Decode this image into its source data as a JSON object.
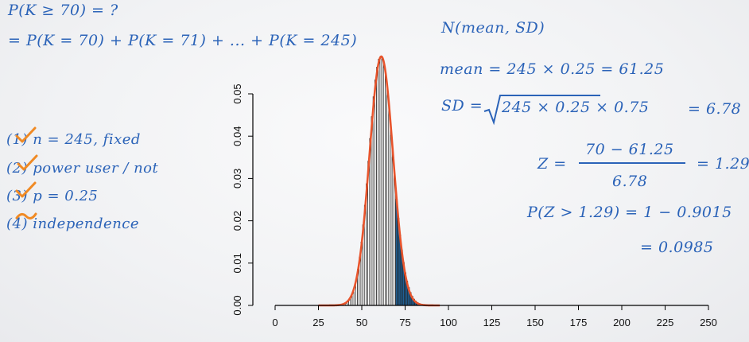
{
  "notes_left": {
    "line1": "P(K ≥ 70) = ?",
    "line2": "= P(K = 70) + P(K = 71) + ... + P(K = 245)",
    "conditions": [
      {
        "num": "(1)",
        "text": "n = 245, fixed",
        "mark": "check"
      },
      {
        "num": "(2)",
        "text": "power user / not",
        "mark": "check"
      },
      {
        "num": "(3)",
        "text": "p = 0.25",
        "mark": "check"
      },
      {
        "num": "(4)",
        "text": "independence",
        "mark": "tilde"
      }
    ]
  },
  "notes_right": {
    "normal": "N(mean, SD)",
    "mean_eq": "mean = 245 × 0.25 = 61.25",
    "sd_lhs": "SD =",
    "sd_radicand": "245 × 0.25 × 0.75",
    "sd_result": "= 6.78",
    "z_lhs": "Z =",
    "z_num": "70 − 61.25",
    "z_den": "6.78",
    "z_result": "= 1.29",
    "p_eq": "P(Z > 1.29) = 1 − 0.9015",
    "p_result": "= 0.0985"
  },
  "colors": {
    "ink": "#2b63b8",
    "curve": "#e8542c",
    "check": "#f08a24",
    "bars": "#222222",
    "shaded": "#1f5f95"
  },
  "chart_data": {
    "type": "bar",
    "distribution": {
      "name": "binomial",
      "n": 245,
      "p": 0.25
    },
    "shaded_from": 70,
    "overlay": {
      "type": "normal",
      "mean": 61.25,
      "sd": 6.78
    },
    "xlim": [
      0,
      250
    ],
    "ylim": [
      0,
      0.05
    ],
    "x_ticks": [
      "0",
      "25",
      "50",
      "75",
      "100",
      "125",
      "150",
      "175",
      "200",
      "225",
      "250"
    ],
    "y_ticks": [
      "0.00",
      "0.01",
      "0.02",
      "0.03",
      "0.04",
      "0.05"
    ],
    "title": "",
    "xlabel": "",
    "ylabel": ""
  }
}
